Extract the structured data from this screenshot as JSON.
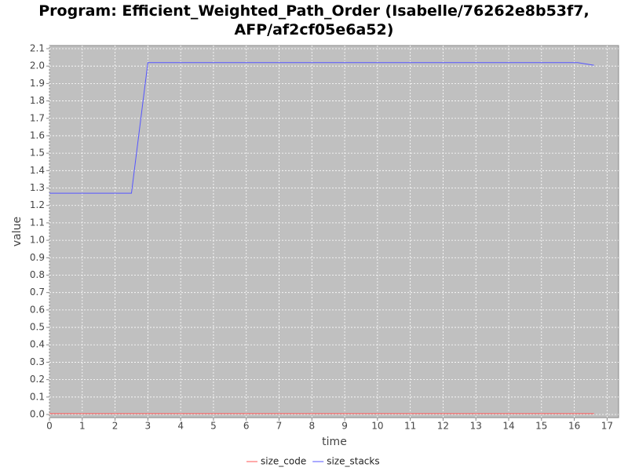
{
  "chart_data": {
    "type": "line",
    "title": [
      "Program: Efficient_Weighted_Path_Order (Isabelle/76262e8b53f7,",
      "AFP/af2cf05e6a52)"
    ],
    "x_label": "time",
    "y_label": "value",
    "xlim": [
      0,
      17.35
    ],
    "ylim": [
      -0.018,
      2.118
    ],
    "xticks": [
      0,
      1,
      2,
      3,
      4,
      5,
      6,
      7,
      8,
      9,
      10,
      11,
      12,
      13,
      14,
      15,
      16,
      17
    ],
    "yticks": [
      {
        "value": 0,
        "label": "0.0"
      },
      0.1,
      0.2,
      0.3,
      0.4,
      0.5,
      0.6,
      0.7,
      0.8,
      0.9,
      {
        "value": 1,
        "label": "1.0"
      },
      1.1,
      1.2,
      1.3,
      1.4,
      1.5,
      1.6,
      1.7,
      1.8,
      1.9,
      {
        "value": 2,
        "label": "2.0"
      },
      2.1
    ],
    "grid": true,
    "legend": "bottom",
    "series": [
      {
        "name": "size_code",
        "color": "#ff5555",
        "x": [
          0,
          16.6
        ],
        "values": [
          0.005,
          0.005
        ]
      },
      {
        "name": "size_stacks",
        "color": "#5555ff",
        "x": [
          0,
          2.5,
          3,
          16.1,
          16.6
        ],
        "values": [
          1.27,
          1.27,
          2.02,
          2.02,
          2.005
        ]
      }
    ]
  }
}
